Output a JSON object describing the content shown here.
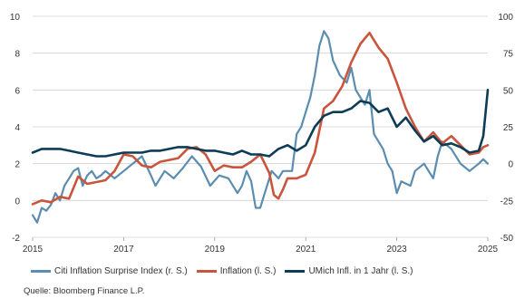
{
  "chart_data": {
    "type": "line",
    "y_left": {
      "min": -2,
      "max": 10,
      "ticks": [
        -2,
        0,
        2,
        4,
        6,
        8,
        10
      ]
    },
    "y_right": {
      "min": -50,
      "max": 100,
      "ticks": [
        -50,
        -25,
        0,
        25,
        50,
        75,
        100
      ]
    },
    "x_range": [
      2015,
      2025
    ],
    "x_ticks": [
      "2015",
      "2017",
      "2019",
      "2021",
      "2023",
      "2025"
    ],
    "grid": "horizontal",
    "legend_position": "bottom",
    "series": [
      {
        "name": "Citi Inflation Surprise Index (r. S.)",
        "axis": "right",
        "color": "#5b8db0",
        "x": [
          2015.0,
          2015.1,
          2015.2,
          2015.3,
          2015.4,
          2015.5,
          2015.6,
          2015.7,
          2015.8,
          2015.9,
          2016.0,
          2016.1,
          2016.2,
          2016.3,
          2016.4,
          2016.5,
          2016.6,
          2016.8,
          2017.0,
          2017.2,
          2017.4,
          2017.6,
          2017.7,
          2017.9,
          2018.1,
          2018.3,
          2018.5,
          2018.7,
          2018.9,
          2019.1,
          2019.3,
          2019.5,
          2019.6,
          2019.7,
          2019.8,
          2019.9,
          2020.0,
          2020.1,
          2020.25,
          2020.4,
          2020.5,
          2020.7,
          2020.8,
          2020.9,
          2021.0,
          2021.1,
          2021.2,
          2021.3,
          2021.4,
          2021.5,
          2021.6,
          2021.75,
          2021.9,
          2022.0,
          2022.1,
          2022.2,
          2022.3,
          2022.4,
          2022.5,
          2022.6,
          2022.7,
          2022.8,
          2022.9,
          2023.0,
          2023.1,
          2023.3,
          2023.4,
          2023.6,
          2023.8,
          2023.9,
          2024.0,
          2024.2,
          2024.4,
          2024.6,
          2024.8,
          2024.9,
          2025.0
        ],
        "y": [
          -35,
          -40,
          -30,
          -32,
          -28,
          -20,
          -25,
          -15,
          -10,
          -5,
          -3,
          -15,
          -8,
          -5,
          -10,
          -8,
          -5,
          -10,
          -5,
          0,
          5,
          -8,
          -15,
          -5,
          -10,
          -3,
          5,
          -2,
          -15,
          -8,
          -10,
          -20,
          -15,
          -5,
          -12,
          -30,
          -30,
          -20,
          -5,
          -10,
          -5,
          -5,
          20,
          25,
          35,
          45,
          60,
          80,
          90,
          85,
          70,
          60,
          55,
          65,
          50,
          45,
          40,
          50,
          20,
          15,
          10,
          0,
          -5,
          -20,
          -12,
          -15,
          -5,
          0,
          -10,
          5,
          15,
          10,
          0,
          -5,
          0,
          3,
          0
        ]
      },
      {
        "name": "Inflation (l. S.)",
        "axis": "left",
        "color": "#c9553d",
        "x": [
          2015.0,
          2015.2,
          2015.4,
          2015.6,
          2015.8,
          2016.0,
          2016.2,
          2016.4,
          2016.6,
          2016.8,
          2017.0,
          2017.2,
          2017.4,
          2017.6,
          2017.8,
          2018.0,
          2018.2,
          2018.4,
          2018.6,
          2018.8,
          2019.0,
          2019.2,
          2019.4,
          2019.6,
          2019.8,
          2020.0,
          2020.2,
          2020.3,
          2020.4,
          2020.5,
          2020.6,
          2020.8,
          2021.0,
          2021.2,
          2021.4,
          2021.6,
          2021.8,
          2022.0,
          2022.2,
          2022.4,
          2022.6,
          2022.8,
          2023.0,
          2023.2,
          2023.4,
          2023.6,
          2023.8,
          2024.0,
          2024.2,
          2024.4,
          2024.6,
          2024.8,
          2024.9,
          2025.0
        ],
        "y": [
          -0.2,
          0.0,
          -0.1,
          0.2,
          0.1,
          1.3,
          0.9,
          1.0,
          1.1,
          1.6,
          2.5,
          2.4,
          1.9,
          1.8,
          2.1,
          2.2,
          2.3,
          2.8,
          2.9,
          2.5,
          1.6,
          1.9,
          1.8,
          1.8,
          2.1,
          2.5,
          1.5,
          0.3,
          0.1,
          0.6,
          1.2,
          1.2,
          1.4,
          2.6,
          5.0,
          5.4,
          6.2,
          7.5,
          8.5,
          9.1,
          8.3,
          7.7,
          6.4,
          5.0,
          4.0,
          3.2,
          3.7,
          3.1,
          3.5,
          3.0,
          2.5,
          2.6,
          2.9,
          3.0
        ]
      },
      {
        "name": "UMich Infl. in 1 Jahr (l. S.)",
        "axis": "left",
        "color": "#0d3d56",
        "x": [
          2015.0,
          2015.2,
          2015.4,
          2015.6,
          2015.8,
          2016.0,
          2016.2,
          2016.4,
          2016.6,
          2016.8,
          2017.0,
          2017.2,
          2017.4,
          2017.6,
          2017.8,
          2018.0,
          2018.2,
          2018.4,
          2018.6,
          2018.8,
          2019.0,
          2019.2,
          2019.4,
          2019.6,
          2019.8,
          2020.0,
          2020.2,
          2020.4,
          2020.6,
          2020.8,
          2021.0,
          2021.2,
          2021.4,
          2021.6,
          2021.8,
          2022.0,
          2022.2,
          2022.4,
          2022.6,
          2022.8,
          2023.0,
          2023.2,
          2023.4,
          2023.6,
          2023.8,
          2024.0,
          2024.2,
          2024.4,
          2024.6,
          2024.8,
          2024.9,
          2025.0
        ],
        "y": [
          2.6,
          2.8,
          2.8,
          2.8,
          2.7,
          2.6,
          2.5,
          2.4,
          2.4,
          2.5,
          2.6,
          2.6,
          2.6,
          2.7,
          2.7,
          2.8,
          2.9,
          2.9,
          2.8,
          2.7,
          2.7,
          2.6,
          2.5,
          2.7,
          2.5,
          2.5,
          2.4,
          2.8,
          3.0,
          2.7,
          3.0,
          4.0,
          4.6,
          4.8,
          4.8,
          5.0,
          5.4,
          5.3,
          4.8,
          5.0,
          4.0,
          4.5,
          3.8,
          3.2,
          3.5,
          3.0,
          3.1,
          2.9,
          2.6,
          2.7,
          3.5,
          6.0
        ]
      }
    ],
    "source": "Quelle: Bloomberg Finance L.P."
  }
}
